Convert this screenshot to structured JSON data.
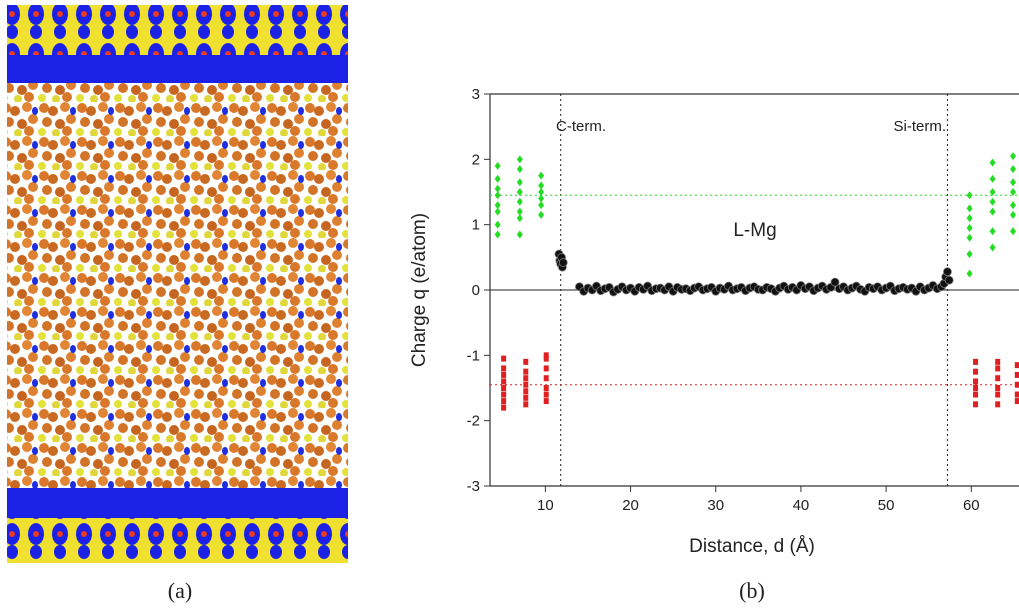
{
  "chart_data": {
    "type": "scatter",
    "panel_labels": [
      "(a)",
      "(b)"
    ],
    "xlabel": "Distance, d (Å)",
    "ylabel": "Charge q (e/atom)",
    "xlim": [
      3.5,
      65.6
    ],
    "ylim": [
      -3,
      3
    ],
    "xticks": [
      10,
      20,
      30,
      40,
      50,
      60
    ],
    "yticks": [
      -3,
      -2,
      -1,
      0,
      1,
      2,
      3
    ],
    "zero_line": 0,
    "vlines": [
      11.8,
      57.2
    ],
    "hlines": [
      {
        "value": 1.45,
        "color": "#22dd22"
      },
      {
        "value": -1.45,
        "color": "#e02020"
      }
    ],
    "annotations": [
      "C-term.",
      "Si-term.",
      "L-Mg"
    ],
    "series": [
      {
        "color": "#22dd22",
        "marker": "diamond",
        "x": [
          4.4,
          4.4,
          4.4,
          4.4,
          4.4,
          4.4,
          4.4,
          4.4,
          7.0,
          7.0,
          7.0,
          7.0,
          7.0,
          7.0,
          7.0,
          7.0,
          9.5,
          9.5,
          9.5,
          9.5,
          9.5,
          9.5,
          59.8,
          59.8,
          59.8,
          59.8,
          59.8,
          59.8,
          59.8,
          62.5,
          62.5,
          62.5,
          62.5,
          62.5,
          62.5,
          62.5,
          64.9,
          64.9,
          64.9,
          64.9,
          64.9,
          64.9,
          64.9
        ],
        "values": [
          1.9,
          1.7,
          1.55,
          1.45,
          1.3,
          1.2,
          1.0,
          0.85,
          2.0,
          1.85,
          1.65,
          1.5,
          1.35,
          1.2,
          1.1,
          0.85,
          1.75,
          1.6,
          1.5,
          1.4,
          1.3,
          1.15,
          1.45,
          1.25,
          1.1,
          0.95,
          0.8,
          0.55,
          0.25,
          1.95,
          1.7,
          1.5,
          1.35,
          1.2,
          0.9,
          0.65,
          2.05,
          1.85,
          1.65,
          1.5,
          1.3,
          1.15,
          0.9
        ]
      },
      {
        "color": "#e02020",
        "marker": "square",
        "x": [
          5.1,
          5.1,
          5.1,
          5.1,
          5.1,
          5.1,
          5.1,
          5.1,
          7.7,
          7.7,
          7.7,
          7.7,
          7.7,
          7.7,
          7.7,
          10.1,
          10.1,
          10.1,
          10.1,
          10.1,
          10.1,
          10.1,
          60.5,
          60.5,
          60.5,
          60.5,
          60.5,
          60.5,
          63.1,
          63.1,
          63.1,
          63.1,
          63.1,
          63.1,
          65.4,
          65.4,
          65.4,
          65.4,
          65.4
        ],
        "values": [
          -1.05,
          -1.2,
          -1.3,
          -1.4,
          -1.5,
          -1.6,
          -1.7,
          -1.8,
          -1.1,
          -1.25,
          -1.35,
          -1.45,
          -1.55,
          -1.65,
          -1.75,
          -1.0,
          -1.05,
          -1.2,
          -1.35,
          -1.5,
          -1.6,
          -1.7,
          -1.1,
          -1.25,
          -1.4,
          -1.5,
          -1.6,
          -1.75,
          -1.1,
          -1.2,
          -1.35,
          -1.5,
          -1.6,
          -1.75,
          -1.15,
          -1.3,
          -1.45,
          -1.6,
          -1.7
        ]
      },
      {
        "color": "#111111",
        "marker": "circle",
        "x": [
          11.6,
          11.7,
          11.8,
          11.9,
          12.0,
          12.1,
          14.0,
          14.5,
          15.0,
          15.5,
          16.0,
          16.5,
          17.0,
          17.5,
          18.0,
          18.5,
          19.0,
          19.5,
          20.0,
          20.5,
          21.0,
          21.5,
          22.0,
          22.5,
          23.0,
          23.5,
          24.0,
          24.5,
          25.0,
          25.5,
          26.0,
          26.5,
          27.0,
          27.5,
          28.0,
          28.5,
          29.0,
          29.5,
          30.0,
          30.5,
          31.0,
          31.5,
          32.0,
          32.5,
          33.0,
          33.5,
          34.0,
          34.5,
          35.0,
          35.5,
          36.0,
          36.5,
          37.0,
          37.5,
          38.0,
          38.5,
          39.0,
          39.5,
          40.0,
          40.5,
          41.0,
          41.5,
          42.0,
          42.5,
          43.0,
          43.5,
          44.0,
          44.5,
          45.0,
          45.5,
          46.0,
          46.5,
          47.0,
          47.5,
          48.0,
          48.5,
          49.0,
          49.5,
          50.0,
          50.5,
          51.0,
          51.5,
          52.0,
          52.5,
          53.0,
          53.5,
          54.0,
          54.5,
          55.0,
          55.5,
          56.0,
          56.5,
          56.8,
          57.0,
          57.2,
          57.4
        ],
        "values": [
          0.55,
          0.45,
          0.4,
          0.5,
          0.35,
          0.42,
          0.05,
          -0.02,
          0.03,
          0.0,
          0.06,
          -0.01,
          0.02,
          0.04,
          -0.03,
          0.01,
          0.05,
          0.0,
          0.03,
          -0.02,
          0.04,
          0.01,
          0.06,
          -0.01,
          0.02,
          0.03,
          0.0,
          0.05,
          -0.02,
          0.04,
          0.01,
          0.02,
          -0.01,
          0.03,
          0.05,
          0.0,
          0.02,
          0.04,
          -0.02,
          0.03,
          0.01,
          0.06,
          0.0,
          0.02,
          0.04,
          -0.01,
          0.03,
          0.05,
          0.01,
          0.0,
          0.04,
          0.02,
          -0.02,
          0.03,
          0.06,
          0.01,
          0.04,
          0.0,
          0.07,
          0.02,
          0.05,
          -0.01,
          0.03,
          0.06,
          0.01,
          0.04,
          0.12,
          0.02,
          0.05,
          0.0,
          0.03,
          0.06,
          0.01,
          -0.02,
          0.04,
          0.02,
          0.05,
          0.0,
          0.03,
          0.06,
          -0.01,
          0.02,
          0.04,
          0.01,
          0.03,
          -0.02,
          0.05,
          0.0,
          0.03,
          0.07,
          0.02,
          0.05,
          0.1,
          0.2,
          0.28,
          0.15
        ]
      }
    ]
  }
}
